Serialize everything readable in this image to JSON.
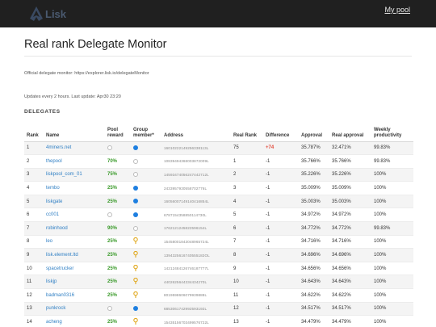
{
  "header": {
    "logo_text": "Lisk",
    "mypool_label": "My pool"
  },
  "page": {
    "title": "Real rank Delegate Monitor",
    "official_monitor": "Official delegate monitor: https://explorer.lisk.io/delegateMonitor",
    "updates": "Updates every 2 hours. Last update: Apr30 23:20",
    "section": "DELEGATES"
  },
  "table": {
    "headers": [
      "Rank",
      "Name",
      "Pool reward",
      "Group member*",
      "Address",
      "Real Rank",
      "Difference",
      "Approval",
      "Real approval",
      "Weekly productivity"
    ],
    "rows": [
      {
        "rank": "1",
        "name": "4miners.net",
        "reward": "",
        "member": "dot",
        "address": "16010222149256338113L",
        "real_rank": "75",
        "diff": "+74",
        "approval": "35.787%",
        "real_approval": "32.471%",
        "productivity": "99.83%"
      },
      {
        "rank": "2",
        "name": "thepool",
        "reward": "70%",
        "member": "circle",
        "address": "10839494368003872009L",
        "real_rank": "1",
        "diff": "-1",
        "approval": "35.766%",
        "real_approval": "35.766%",
        "productivity": "99.83%"
      },
      {
        "rank": "3",
        "name": "liskpool_com_01",
        "reward": "75%",
        "member": "circle",
        "address": "14593474056247442712L",
        "real_rank": "2",
        "diff": "-1",
        "approval": "35.226%",
        "real_approval": "35.226%",
        "productivity": "100%"
      },
      {
        "rank": "4",
        "name": "tembo",
        "reward": "25%",
        "member": "dot",
        "address": "2433957930558702776L",
        "real_rank": "3",
        "diff": "-1",
        "approval": "35.009%",
        "real_approval": "35.009%",
        "productivity": "100%"
      },
      {
        "rank": "5",
        "name": "liskgate",
        "reward": "25%",
        "member": "dot",
        "address": "16056007149140416854L",
        "real_rank": "4",
        "diff": "-1",
        "approval": "35.003%",
        "real_approval": "35.003%",
        "productivity": "100%"
      },
      {
        "rank": "6",
        "name": "cc001",
        "reward": "",
        "member": "dot",
        "address": "6787154358850114730L",
        "real_rank": "5",
        "diff": "-1",
        "approval": "34.972%",
        "real_approval": "34.972%",
        "productivity": "100%"
      },
      {
        "rank": "7",
        "name": "robinhood",
        "reward": "90%",
        "member": "circle",
        "address": "1762121245822596154L",
        "real_rank": "6",
        "diff": "-1",
        "approval": "34.772%",
        "real_approval": "34.772%",
        "productivity": "99.83%"
      },
      {
        "rank": "8",
        "name": "leo",
        "reward": "25%",
        "member": "pin",
        "address": "15458001843048965724L",
        "real_rank": "7",
        "diff": "-1",
        "approval": "34.716%",
        "real_approval": "34.716%",
        "productivity": "100%"
      },
      {
        "rank": "9",
        "name": "lisk.element.ltd",
        "reward": "25%",
        "member": "pin",
        "address": "1394325616740555182OL",
        "real_rank": "8",
        "diff": "-1",
        "approval": "34.696%",
        "real_approval": "34.696%",
        "productivity": "100%"
      },
      {
        "rank": "10",
        "name": "spacetrucker",
        "reward": "25%",
        "member": "pin",
        "address": "14212484126746187777L",
        "real_rank": "9",
        "diff": "-1",
        "approval": "34.656%",
        "real_approval": "34.656%",
        "productivity": "100%"
      },
      {
        "rank": "11",
        "name": "liskjp",
        "reward": "25%",
        "member": "pin",
        "address": "4402625644334434270L",
        "real_rank": "10",
        "diff": "-1",
        "approval": "34.643%",
        "real_approval": "34.643%",
        "productivity": "100%"
      },
      {
        "rank": "12",
        "name": "badman0316",
        "reward": "25%",
        "member": "pin",
        "address": "8019598606079939888L",
        "real_rank": "11",
        "diff": "-1",
        "approval": "34.622%",
        "real_approval": "34.622%",
        "productivity": "100%"
      },
      {
        "rank": "13",
        "name": "punkrock",
        "reward": "",
        "member": "dot",
        "address": "6853061742992593192L",
        "real_rank": "12",
        "diff": "-1",
        "approval": "34.517%",
        "real_approval": "34.517%",
        "productivity": "100%"
      },
      {
        "rank": "14",
        "name": "acheng",
        "reward": "25%",
        "member": "pin",
        "address": "15435156703499576722L",
        "real_rank": "13",
        "diff": "-1",
        "approval": "34.479%",
        "real_approval": "34.479%",
        "productivity": "100%"
      }
    ]
  },
  "colors": {
    "topbar": "#202020",
    "link": "#2f7fc4",
    "reward_green": "#3a9a2a",
    "diff_red": "#e24a3b",
    "member_blue": "#1e7fe0",
    "pin_gold": "#e0a81e"
  }
}
